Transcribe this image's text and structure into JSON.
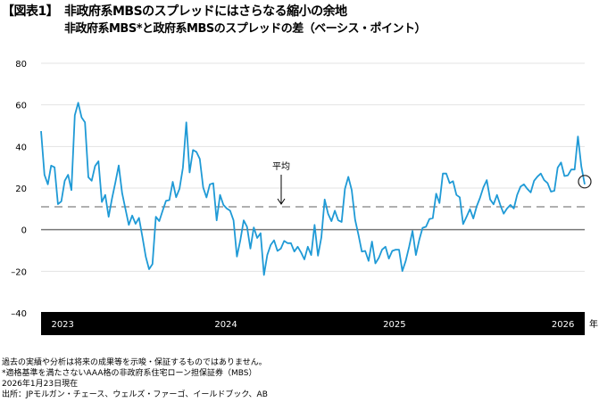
{
  "header": {
    "figure_number": "【図表1】",
    "title": "非政府系MBSのスプレッドにはさらなる縮小の余地",
    "subtitle": "非政府系MBS*と政府系MBSのスプレッドの差（ベーシス・ポイント）"
  },
  "chart_data": {
    "type": "line",
    "title": "非政府系MBSのスプレッドにはさらなる縮小の余地",
    "ylabel": "ベーシス・ポイント",
    "xlabel": "年",
    "ylim": [
      -40,
      80
    ],
    "yticks": [
      80,
      60,
      40,
      20,
      0,
      -20,
      -40
    ],
    "ytick_labels": [
      "80",
      "60",
      "40",
      "20",
      "0",
      "–20",
      "–40"
    ],
    "xtick_labels": [
      "2023",
      "2024",
      "2025",
      "2026"
    ],
    "xtick_positions": [
      0.02,
      0.34,
      0.65,
      0.96
    ],
    "x_unit_label": "年",
    "average": 11,
    "average_label": "平均",
    "grid": true,
    "series": [
      {
        "name": "非政府系MBS*と政府系MBSのスプレッドの差",
        "color": "#1f9ad6",
        "values": [
          47.4,
          26.4,
          21.8,
          30.8,
          30,
          12.3,
          13.6,
          23.5,
          26.4,
          19,
          55,
          61,
          54,
          51.6,
          25.2,
          23.5,
          30.6,
          32.9,
          13.3,
          16.7,
          6.2,
          14.8,
          22.6,
          30.9,
          17.6,
          9.8,
          2.3,
          6.8,
          2.8,
          5.7,
          -3.4,
          -13,
          -19,
          -16.5,
          6.2,
          4.1,
          9.1,
          13.9,
          14.2,
          23,
          15.6,
          19.7,
          29.8,
          51.6,
          27.5,
          38.3,
          37.4,
          34,
          20.3,
          15.5,
          21.8,
          22.3,
          4.5,
          16.7,
          11.9,
          10.2,
          9.1,
          4.5,
          -12.9,
          -5.1,
          4.5,
          1.4,
          -9.1,
          1.1,
          -4,
          -1.7,
          -21.8,
          -12.2,
          -7.4,
          -5.1,
          -10.2,
          -9.1,
          -5.4,
          -6.5,
          -6.5,
          -10.5,
          -8.2,
          -11,
          -14.3,
          -8.2,
          -12.2,
          2.3,
          -12.5,
          -3.7,
          14.5,
          7.7,
          4.1,
          9.1,
          4.5,
          3.7,
          19.6,
          25.4,
          19,
          4.8,
          -2.6,
          -10.5,
          -10.2,
          -15,
          -5.7,
          -16.2,
          -13.6,
          -9.6,
          -8.2,
          -13.9,
          -10.2,
          -9.6,
          -9.6,
          -19.9,
          -15,
          -8.2,
          -0.6,
          -12.2,
          -4.8,
          0.9,
          1.4,
          5.1,
          5.5,
          17.3,
          12.8,
          27,
          27,
          22.4,
          23.3,
          16.7,
          15.6,
          2.7,
          6.2,
          9.9,
          5.4,
          11.2,
          15.3,
          20.4,
          23.8,
          14.5,
          12.2,
          16.7,
          11.9,
          7.7,
          10.2,
          11.9,
          10.2,
          16.7,
          20.7,
          21.8,
          19.6,
          17.9,
          23.5,
          25.5,
          27,
          23.8,
          22.4,
          18.3,
          18.7,
          29.8,
          32.3,
          25.8,
          26.1,
          28.9,
          28.9,
          44.8,
          30.4,
          21.8
        ]
      }
    ],
    "highlight": "last-point-circle"
  },
  "footnotes": [
    "過去の実績や分析は将来の成果等を示唆・保証するものではありません。",
    "*適格基準を満たさないAAA格の非政府系住宅ローン担保証券（MBS）",
    "2026年1月23日現在",
    "出所：JPモルガン・チェース、ウェルズ・ファーゴ、イールドブック、AB"
  ]
}
